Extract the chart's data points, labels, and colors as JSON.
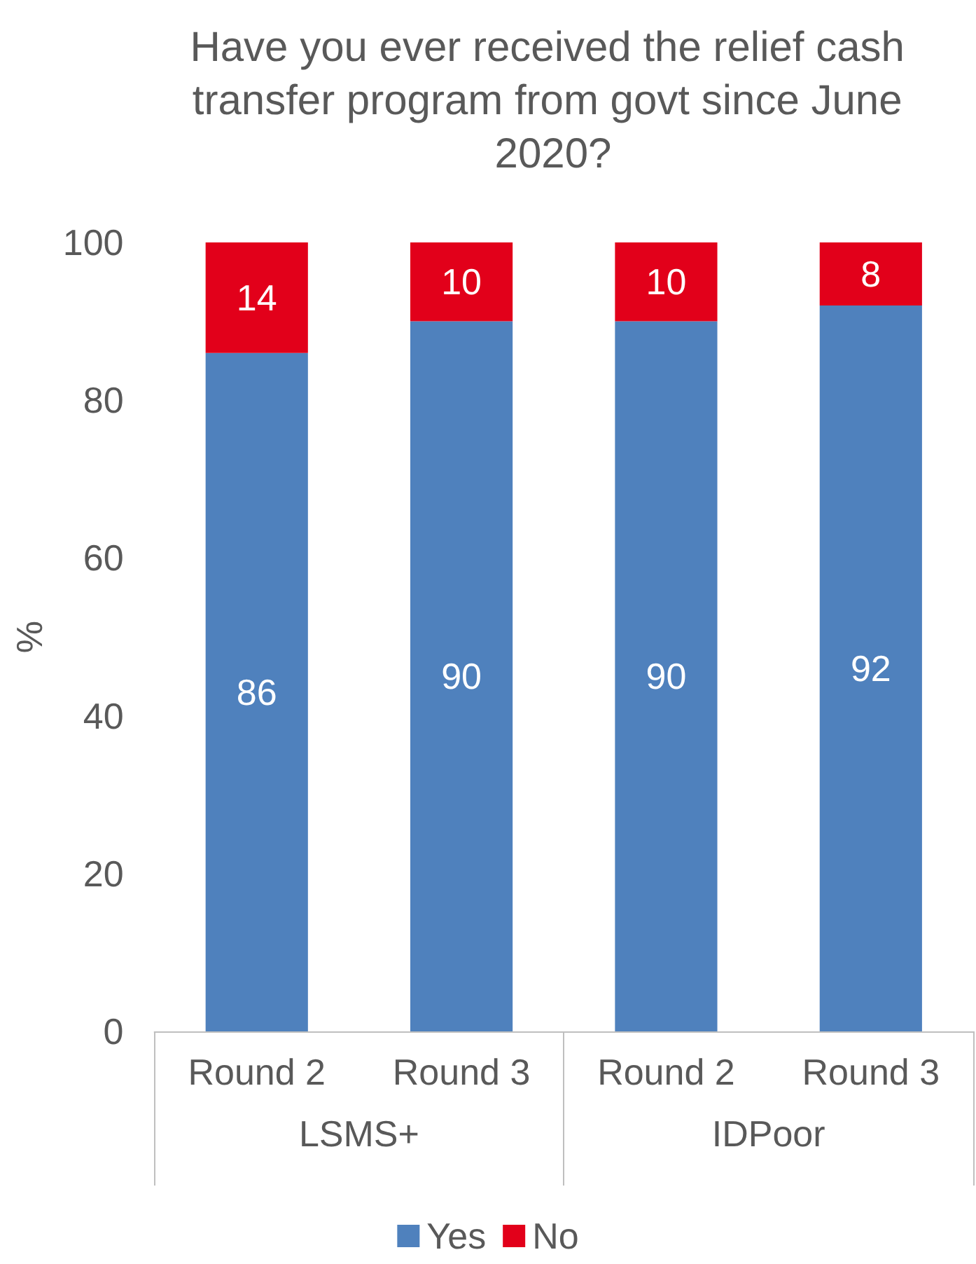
{
  "chart_data": {
    "type": "bar",
    "title": "Have you ever received the relief cash transfer program from govt since June 2020?",
    "ylabel": "%",
    "categories": [
      "Round 2",
      "Round 3",
      "Round 2",
      "Round 3"
    ],
    "series": [
      {
        "name": "Yes",
        "color": "#4f81bd",
        "values": [
          86,
          90,
          90,
          92
        ]
      },
      {
        "name": "No",
        "color": "#e2001a",
        "values": [
          14,
          10,
          10,
          8
        ]
      }
    ],
    "stacked": true,
    "data_labels": true,
    "ylim": [
      0,
      100
    ],
    "yticks": [
      0,
      20,
      40,
      60,
      80,
      100
    ],
    "grid": false,
    "legend": "bottom",
    "annotations": [
      "LSMS+",
      "IDPoor"
    ]
  }
}
